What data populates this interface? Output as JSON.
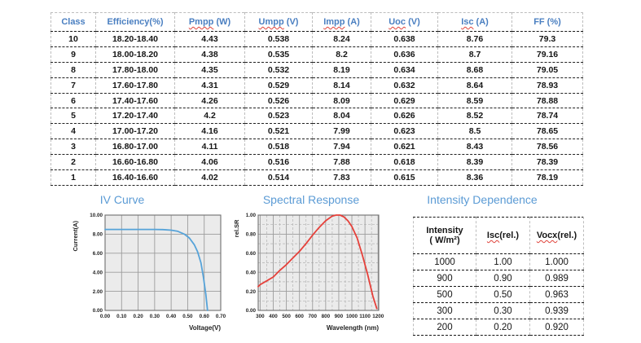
{
  "colors": {
    "header_blue": "#4a7fc1",
    "title_blue": "#5b9bd5",
    "squiggle_red": "#e0423a"
  },
  "class_table": {
    "headers": [
      {
        "label": "Class",
        "squiggle": false
      },
      {
        "label": "Efficiency(%)",
        "squiggle": false
      },
      {
        "label": "Pmpp (W)",
        "squiggle": true
      },
      {
        "label": "Umpp (V)",
        "squiggle": true
      },
      {
        "label": "Impp (A)",
        "squiggle": true
      },
      {
        "label": "Uoc (V)",
        "squiggle": true
      },
      {
        "label": "Isc (A)",
        "squiggle": true
      },
      {
        "label": "FF (%)",
        "squiggle": false
      }
    ],
    "rows": [
      [
        "10",
        "18.20-18.40",
        "4.43",
        "0.538",
        "8.24",
        "0.638",
        "8.76",
        "79.3"
      ],
      [
        "9",
        "18.00-18.20",
        "4.38",
        "0.535",
        "8.2",
        "0.636",
        "8.7",
        "79.16"
      ],
      [
        "8",
        "17.80-18.00",
        "4.35",
        "0.532",
        "8.19",
        "0.634",
        "8.68",
        "79.05"
      ],
      [
        "7",
        "17.60-17.80",
        "4.31",
        "0.529",
        "8.14",
        "0.632",
        "8.64",
        "78.93"
      ],
      [
        "6",
        "17.40-17.60",
        "4.26",
        "0.526",
        "8.09",
        "0.629",
        "8.59",
        "78.88"
      ],
      [
        "5",
        "17.20-17.40",
        "4.2",
        "0.523",
        "8.04",
        "0.626",
        "8.52",
        "78.74"
      ],
      [
        "4",
        "17.00-17.20",
        "4.16",
        "0.521",
        "7.99",
        "0.623",
        "8.5",
        "78.65"
      ],
      [
        "3",
        "16.80-17.00",
        "4.11",
        "0.518",
        "7.94",
        "0.621",
        "8.43",
        "78.56"
      ],
      [
        "2",
        "16.60-16.80",
        "4.06",
        "0.516",
        "7.88",
        "0.618",
        "8.39",
        "78.39"
      ],
      [
        "1",
        "16.40-16.60",
        "4.02",
        "0.514",
        "7.83",
        "0.615",
        "8.36",
        "78.19"
      ]
    ]
  },
  "chart_data": [
    {
      "type": "line",
      "name": "iv_curve",
      "title": "IV Curve",
      "xlabel": "Voltage(V)",
      "ylabel": "Current(A)",
      "xlim": [
        0,
        0.7
      ],
      "ylim": [
        0,
        10
      ],
      "xticks": [
        0,
        0.1,
        0.2,
        0.3,
        0.4,
        0.5,
        0.6,
        0.7
      ],
      "xtick_labels": [
        "0.00",
        "0.10",
        "0.20",
        "0.30",
        "0.40",
        "0.50",
        "0.60",
        "0.70"
      ],
      "yticks": [
        0,
        2,
        4,
        6,
        8,
        10
      ],
      "ytick_labels": [
        "0.00",
        "2.00",
        "4.00",
        "6.00",
        "8.00",
        "10.00"
      ],
      "x_minor": [],
      "y_minor": [],
      "x": [
        0,
        0.05,
        0.1,
        0.15,
        0.2,
        0.25,
        0.3,
        0.35,
        0.4,
        0.44,
        0.48,
        0.51,
        0.54,
        0.56,
        0.58,
        0.595,
        0.61,
        0.62
      ],
      "y": [
        8.5,
        8.5,
        8.5,
        8.5,
        8.5,
        8.5,
        8.5,
        8.48,
        8.42,
        8.3,
        8.0,
        7.6,
        6.9,
        6.15,
        5.0,
        3.5,
        1.7,
        0
      ],
      "grid": "on",
      "legend": "none",
      "color": "#56a3d9",
      "plot_bg": "#ebebeb",
      "grid_major": "#9c9c9c",
      "grid_minor": "#b4b4b4",
      "border": "#6f6f6f"
    },
    {
      "type": "line",
      "name": "spectral_response",
      "title": "Spectral Response",
      "xlabel": "Wavelength (nm)",
      "ylabel": "rel.SR",
      "xlim": [
        285,
        1205
      ],
      "ylim": [
        0,
        1.0
      ],
      "xticks": [
        300,
        400,
        500,
        600,
        700,
        800,
        900,
        1000,
        1100,
        1200
      ],
      "xtick_labels": [
        "300",
        "400",
        "500",
        "600",
        "700",
        "800",
        "900",
        "1000",
        "1100",
        "1200"
      ],
      "yticks": [
        0,
        0.2,
        0.4,
        0.6,
        0.8,
        1.0
      ],
      "ytick_labels": [
        "0.00",
        "0.20",
        "0.40",
        "0.60",
        "0.80",
        "1.00"
      ],
      "x_minor": [
        350,
        450,
        550,
        650,
        750,
        850,
        950,
        1050,
        1150
      ],
      "y_minor": [
        0.1,
        0.3,
        0.5,
        0.7,
        0.9
      ],
      "x": [
        285,
        300,
        350,
        400,
        450,
        500,
        550,
        600,
        650,
        700,
        750,
        800,
        850,
        880,
        910,
        940,
        970,
        1000,
        1040,
        1080,
        1120,
        1160,
        1190
      ],
      "y": [
        0.25,
        0.27,
        0.31,
        0.35,
        0.42,
        0.48,
        0.55,
        0.62,
        0.7,
        0.79,
        0.87,
        0.94,
        0.99,
        1.0,
        1.0,
        0.98,
        0.94,
        0.88,
        0.76,
        0.58,
        0.38,
        0.15,
        0.02
      ],
      "grid": "on",
      "legend": "none",
      "color": "#e6403a",
      "plot_bg": "#ebebeb",
      "grid_major": "#9c9c9c",
      "grid_minor": "#b4b4b4",
      "border": "#6f6f6f"
    }
  ],
  "intensity_table": {
    "title": "Intensity Dependence",
    "headers": [
      {
        "line1": "Intensity",
        "line2": "( W/m²)",
        "squiggle": false
      },
      {
        "label": "Isc(rel.)",
        "squiggle": true
      },
      {
        "label": "Vocx(rel.)",
        "squiggle": true
      }
    ],
    "rows": [
      [
        "1000",
        "1.00",
        "1.000"
      ],
      [
        "900",
        "0.90",
        "0.989"
      ],
      [
        "500",
        "0.50",
        "0.963"
      ],
      [
        "300",
        "0.30",
        "0.939"
      ],
      [
        "200",
        "0.20",
        "0.920"
      ]
    ]
  }
}
